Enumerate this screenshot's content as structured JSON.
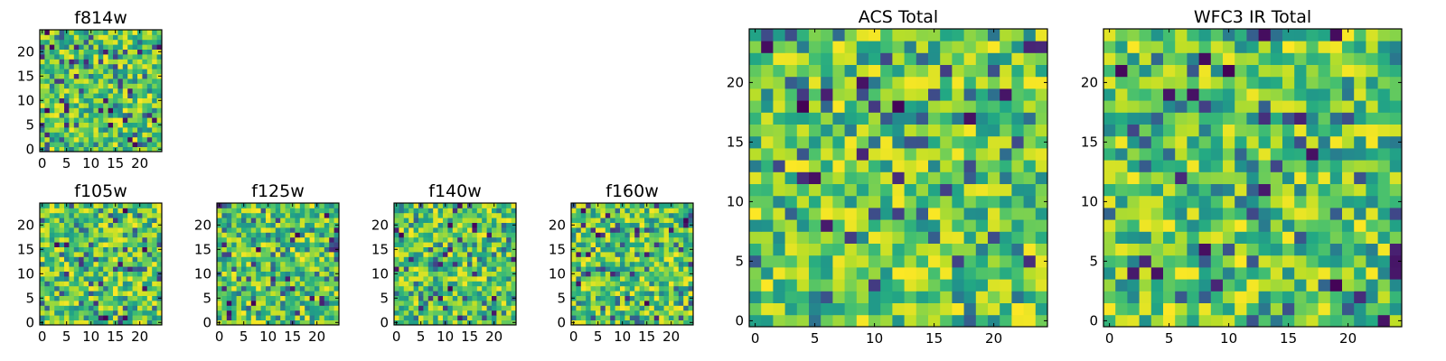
{
  "chart_data": [
    {
      "id": "f814w",
      "type": "heatmap",
      "title": "f814w",
      "grid_size": 25,
      "colormap": "viridis",
      "x_ticks": [
        "0",
        "5",
        "10",
        "15",
        "20"
      ],
      "y_ticks": [
        "0",
        "5",
        "10",
        "15",
        "20"
      ],
      "seed": 814
    },
    {
      "id": "f105w",
      "type": "heatmap",
      "title": "f105w",
      "grid_size": 25,
      "colormap": "viridis",
      "x_ticks": [
        "0",
        "5",
        "10",
        "15",
        "20"
      ],
      "y_ticks": [
        "0",
        "5",
        "10",
        "15",
        "20"
      ],
      "seed": 105
    },
    {
      "id": "f125w",
      "type": "heatmap",
      "title": "f125w",
      "grid_size": 25,
      "colormap": "viridis",
      "x_ticks": [
        "0",
        "5",
        "10",
        "15",
        "20"
      ],
      "y_ticks": [
        "0",
        "5",
        "10",
        "15",
        "20"
      ],
      "seed": 125
    },
    {
      "id": "f140w",
      "type": "heatmap",
      "title": "f140w",
      "grid_size": 25,
      "colormap": "viridis",
      "x_ticks": [
        "0",
        "5",
        "10",
        "15",
        "20"
      ],
      "y_ticks": [
        "0",
        "5",
        "10",
        "15",
        "20"
      ],
      "seed": 140
    },
    {
      "id": "f160w",
      "type": "heatmap",
      "title": "f160w",
      "grid_size": 25,
      "colormap": "viridis",
      "x_ticks": [
        "0",
        "5",
        "10",
        "15",
        "20"
      ],
      "y_ticks": [
        "0",
        "5",
        "10",
        "15",
        "20"
      ],
      "seed": 160
    },
    {
      "id": "acs-total",
      "type": "heatmap",
      "title": "ACS Total",
      "grid_size": 25,
      "colormap": "viridis",
      "x_ticks": [
        "0",
        "5",
        "10",
        "15",
        "20"
      ],
      "y_ticks": [
        "0",
        "5",
        "10",
        "15",
        "20"
      ],
      "seed": 1001
    },
    {
      "id": "wfc3-ir-total",
      "type": "heatmap",
      "title": "WFC3 IR Total",
      "grid_size": 25,
      "colormap": "viridis",
      "x_ticks": [
        "0",
        "5",
        "10",
        "15",
        "20"
      ],
      "y_ticks": [
        "0",
        "5",
        "10",
        "15",
        "20"
      ],
      "seed": 2002
    }
  ]
}
